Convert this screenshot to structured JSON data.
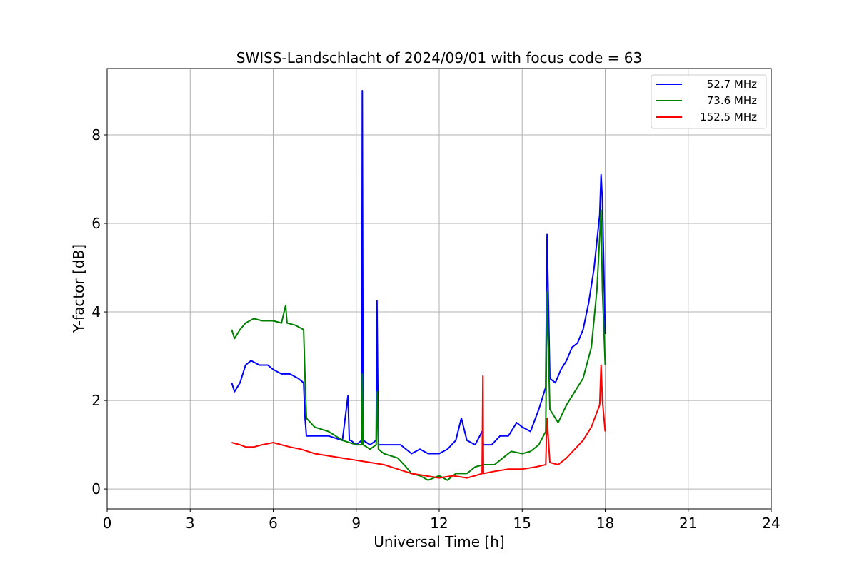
{
  "chart_data": {
    "type": "line",
    "title": "SWISS-Landschlacht of 2024/09/01 with focus code = 63",
    "xlabel": "Universal Time [h]",
    "ylabel": "Y-factor [dB]",
    "xlim": [
      0,
      24
    ],
    "ylim": [
      -0.45,
      9.5
    ],
    "xticks": [
      0,
      3,
      6,
      9,
      12,
      15,
      18,
      21,
      24
    ],
    "xtick_labels": [
      "0",
      "3",
      "6",
      "9",
      "12",
      "15",
      "18",
      "21",
      "24"
    ],
    "yticks": [
      0,
      2,
      4,
      6,
      8
    ],
    "ytick_labels": [
      "0",
      "2",
      "4",
      "6",
      "8"
    ],
    "grid": true,
    "legend_position": "top-right",
    "series": [
      {
        "name": "52.7 MHz",
        "color": "#0000ff",
        "x": [
          4.5,
          4.6,
          4.8,
          5.0,
          5.2,
          5.5,
          5.8,
          6.0,
          6.3,
          6.6,
          6.9,
          7.1,
          7.15,
          7.2,
          7.5,
          8.0,
          8.5,
          8.7,
          8.75,
          8.8,
          9.0,
          9.2,
          9.22,
          9.25,
          9.5,
          9.72,
          9.75,
          9.8,
          10.0,
          10.3,
          10.6,
          11.0,
          11.3,
          11.6,
          12.0,
          12.3,
          12.6,
          12.8,
          13.0,
          13.3,
          13.55,
          13.6,
          13.9,
          14.2,
          14.5,
          14.8,
          15.0,
          15.3,
          15.6,
          15.85,
          15.9,
          16.0,
          16.2,
          16.4,
          16.6,
          16.8,
          17.0,
          17.2,
          17.4,
          17.6,
          17.8,
          17.85,
          17.9,
          18.0
        ],
        "y": [
          2.4,
          2.2,
          2.4,
          2.8,
          2.9,
          2.8,
          2.8,
          2.7,
          2.6,
          2.6,
          2.5,
          2.4,
          1.6,
          1.2,
          1.2,
          1.2,
          1.1,
          2.1,
          1.1,
          1.1,
          1.0,
          1.1,
          9.0,
          1.1,
          1.0,
          1.1,
          4.25,
          1.0,
          1.0,
          1.0,
          1.0,
          0.8,
          0.9,
          0.8,
          0.8,
          0.9,
          1.1,
          1.6,
          1.1,
          1.0,
          1.3,
          1.0,
          1.0,
          1.2,
          1.2,
          1.5,
          1.4,
          1.3,
          1.8,
          2.3,
          5.75,
          2.5,
          2.4,
          2.7,
          2.9,
          3.2,
          3.3,
          3.6,
          4.2,
          5.0,
          6.2,
          7.1,
          6.5,
          3.5
        ]
      },
      {
        "name": "73.6 MHz",
        "color": "#008000",
        "x": [
          4.5,
          4.6,
          4.8,
          5.0,
          5.3,
          5.6,
          6.0,
          6.3,
          6.45,
          6.5,
          6.8,
          7.1,
          7.15,
          7.2,
          7.5,
          8.0,
          8.5,
          9.0,
          9.2,
          9.22,
          9.25,
          9.5,
          9.72,
          9.75,
          9.8,
          10.0,
          10.5,
          10.8,
          11.0,
          11.3,
          11.6,
          12.0,
          12.3,
          12.6,
          13.0,
          13.3,
          13.6,
          14.0,
          14.3,
          14.6,
          15.0,
          15.3,
          15.6,
          15.85,
          15.9,
          16.0,
          16.3,
          16.6,
          16.9,
          17.2,
          17.5,
          17.7,
          17.85,
          17.9,
          18.0
        ],
        "y": [
          3.6,
          3.4,
          3.6,
          3.75,
          3.85,
          3.8,
          3.8,
          3.75,
          4.15,
          3.75,
          3.7,
          3.6,
          2.5,
          1.6,
          1.4,
          1.3,
          1.1,
          1.0,
          1.0,
          2.6,
          1.0,
          0.9,
          1.0,
          2.2,
          0.9,
          0.8,
          0.7,
          0.5,
          0.35,
          0.3,
          0.2,
          0.3,
          0.2,
          0.35,
          0.35,
          0.5,
          0.55,
          0.55,
          0.7,
          0.85,
          0.8,
          0.85,
          1.0,
          1.3,
          4.45,
          1.8,
          1.5,
          1.9,
          2.2,
          2.5,
          3.2,
          4.5,
          6.3,
          4.5,
          2.8
        ]
      },
      {
        "name": "152.5 MHz",
        "color": "#ff0000",
        "x": [
          4.5,
          4.8,
          5.0,
          5.3,
          5.6,
          6.0,
          6.3,
          6.6,
          7.0,
          7.5,
          8.0,
          8.5,
          9.0,
          9.5,
          10.0,
          10.5,
          11.0,
          11.5,
          12.0,
          12.5,
          13.0,
          13.3,
          13.55,
          13.58,
          13.6,
          14.0,
          14.5,
          15.0,
          15.5,
          15.85,
          15.9,
          16.0,
          16.3,
          16.6,
          16.9,
          17.2,
          17.5,
          17.8,
          17.85,
          17.9,
          18.0
        ],
        "y": [
          1.05,
          1.0,
          0.95,
          0.95,
          1.0,
          1.05,
          1.0,
          0.95,
          0.9,
          0.8,
          0.75,
          0.7,
          0.65,
          0.6,
          0.55,
          0.45,
          0.35,
          0.3,
          0.25,
          0.3,
          0.25,
          0.3,
          0.35,
          2.55,
          0.35,
          0.4,
          0.45,
          0.45,
          0.5,
          0.55,
          1.6,
          0.6,
          0.55,
          0.7,
          0.9,
          1.1,
          1.4,
          1.9,
          2.8,
          2.0,
          1.3
        ]
      }
    ]
  }
}
